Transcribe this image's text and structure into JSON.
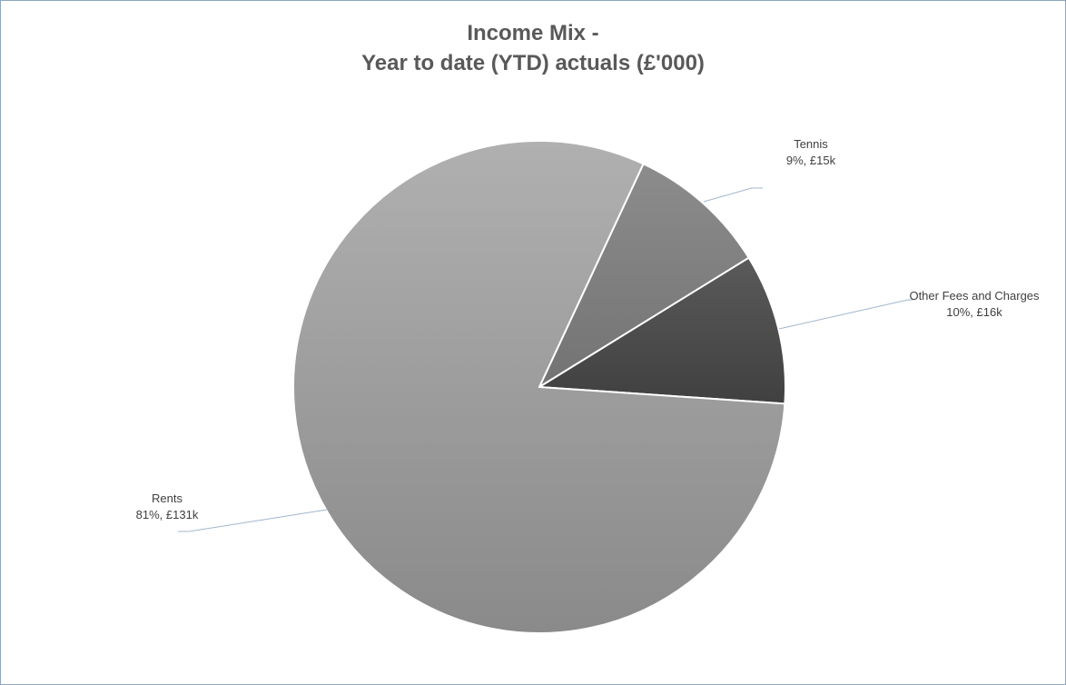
{
  "chart_data": {
    "type": "pie",
    "title_line1": "Income Mix -",
    "title_line2": "Year to date (YTD) actuals (£'000)",
    "slices": [
      {
        "name": "Tennis",
        "percent_label": "9%, £15k",
        "value": 15,
        "color": "#7d7d7d"
      },
      {
        "name": "Other Fees and Charges",
        "percent_label": "10%, £16k",
        "value": 16,
        "color": "#4a4a4a"
      },
      {
        "name": "Rents",
        "percent_label": "81%, £131k",
        "value": 131,
        "color": "#9e9e9e"
      }
    ],
    "start_angle_deg": 25,
    "leader_line_color": "#a3b6cc"
  }
}
